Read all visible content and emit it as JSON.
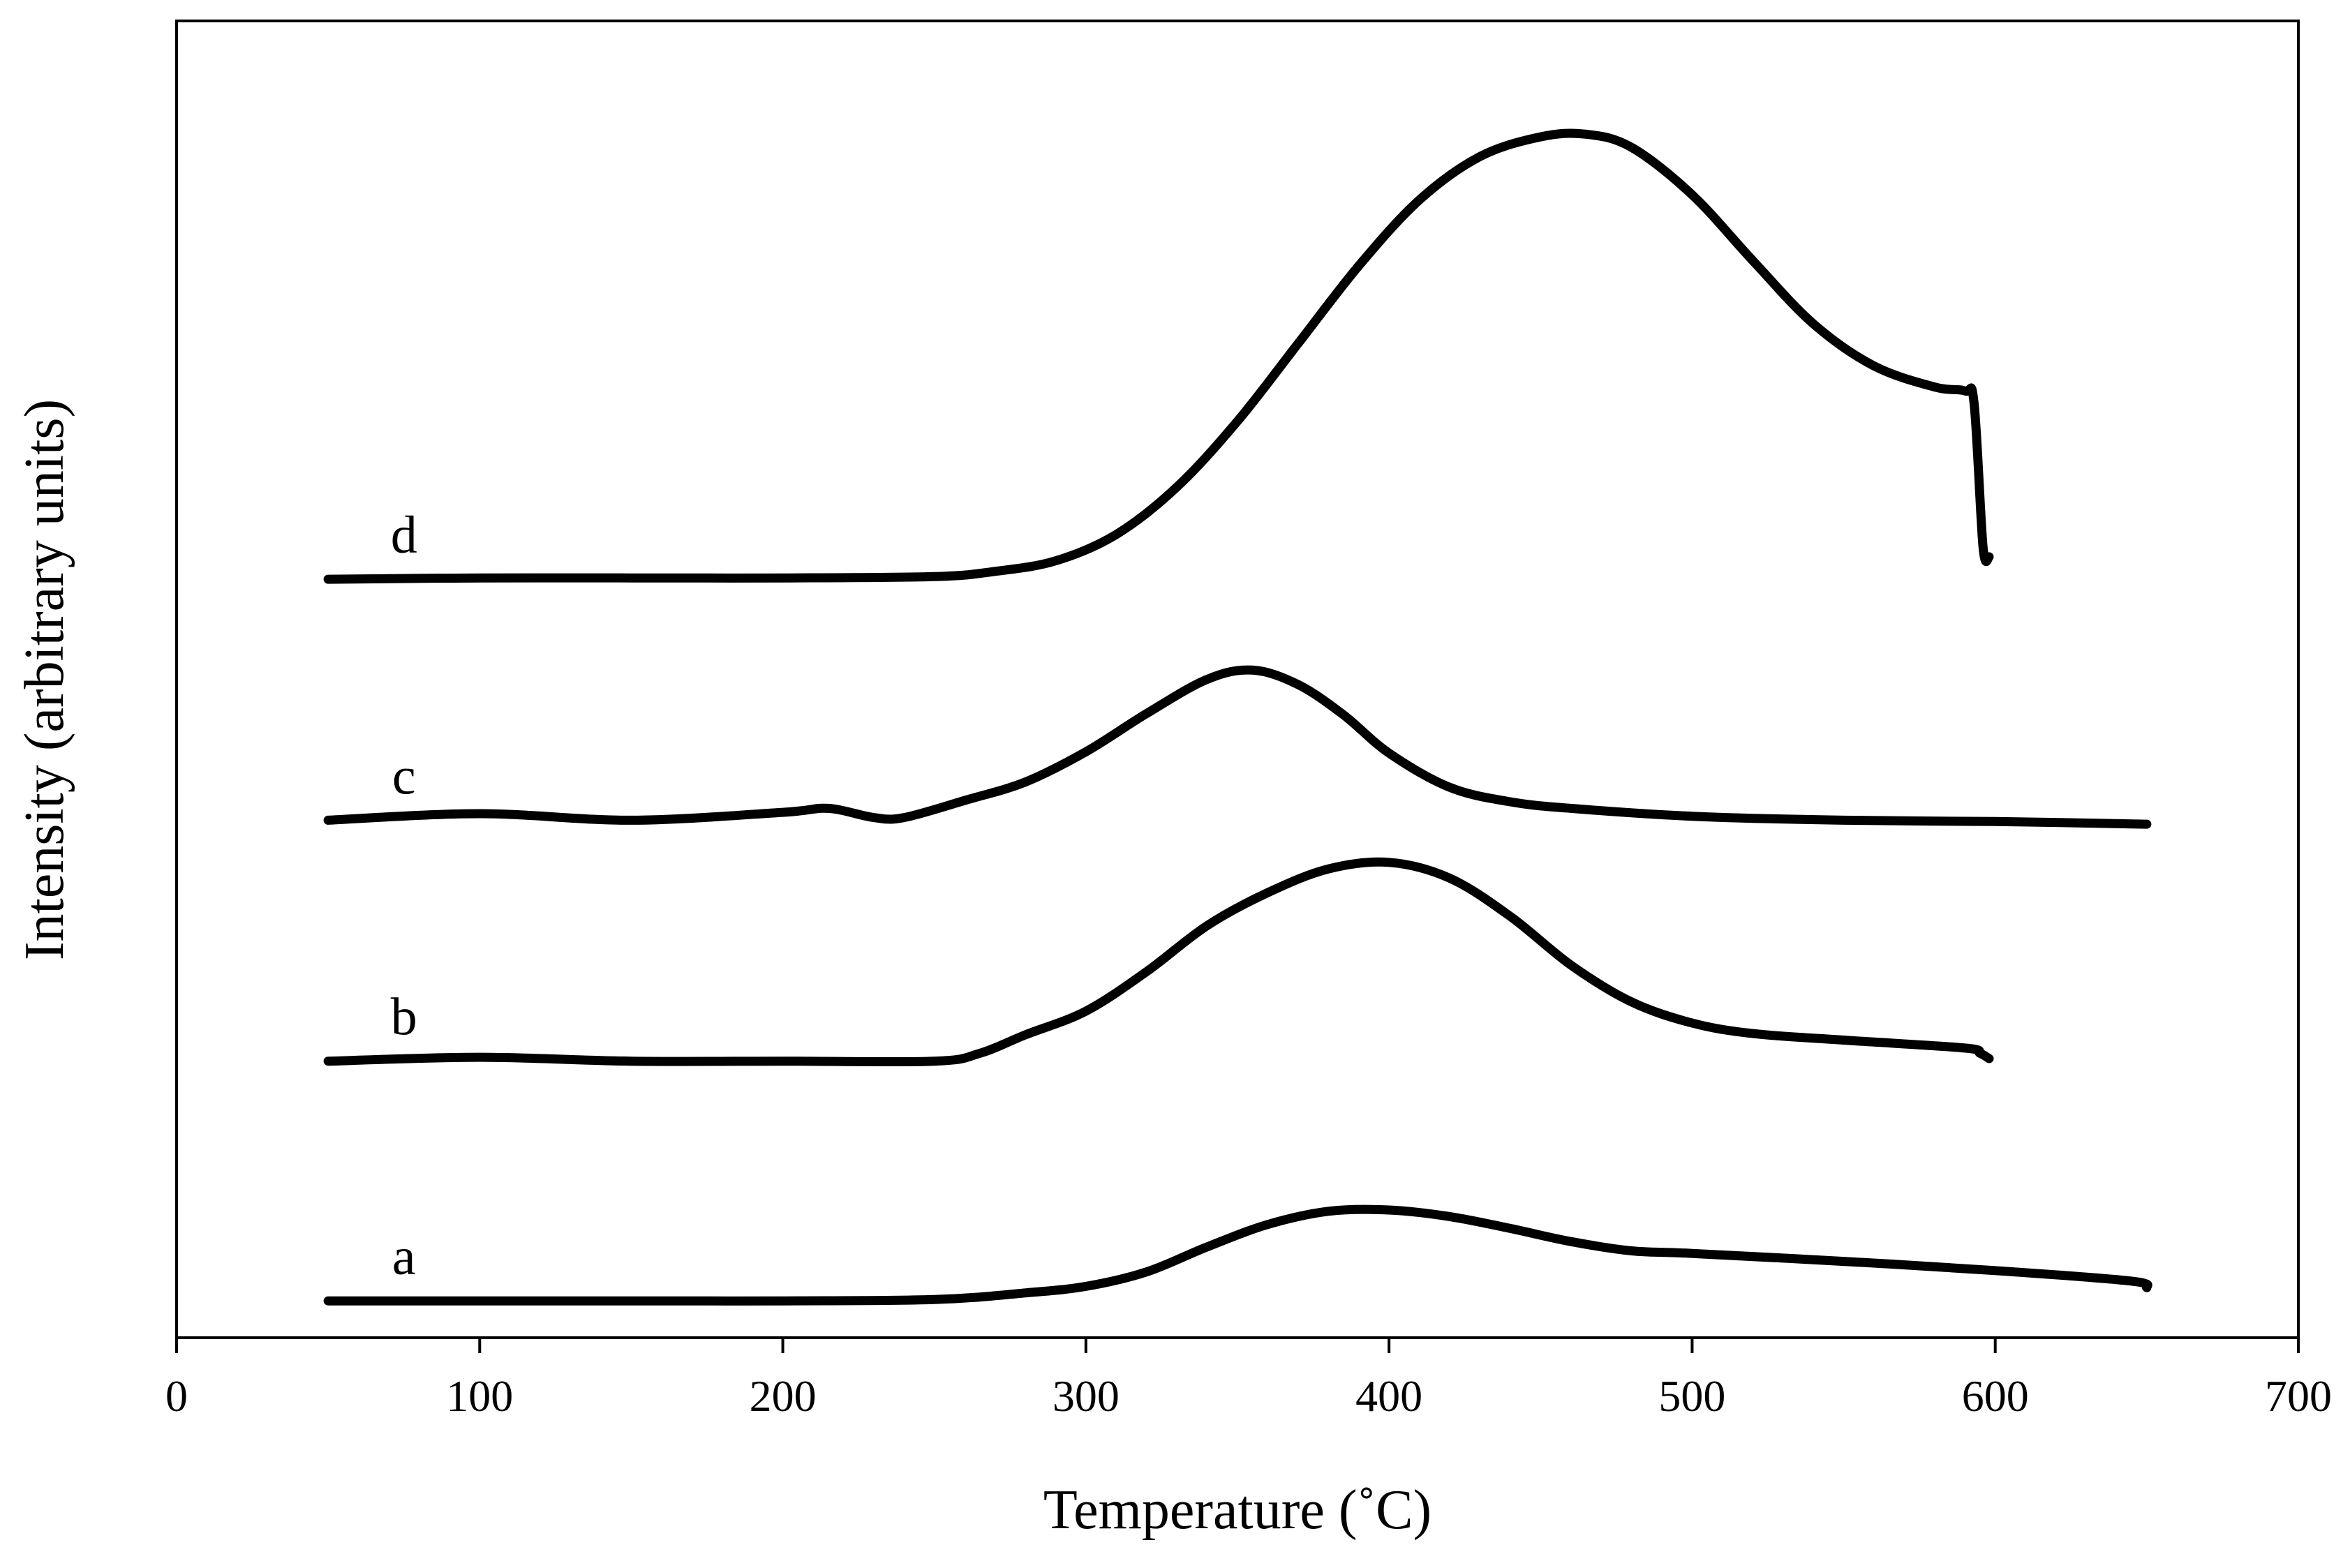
{
  "chart_data": {
    "type": "line",
    "title": "",
    "xlabel": "Temperature (˚C)",
    "ylabel": "Intensity (arbitrary units)",
    "xlim": [
      0,
      700
    ],
    "ylim": [
      0,
      100
    ],
    "xticks": [
      0,
      100,
      200,
      300,
      400,
      500,
      600,
      700
    ],
    "xtick_labels": [
      "0",
      "100",
      "200",
      "300",
      "400",
      "500",
      "600",
      "700"
    ],
    "yticks": [],
    "grid": false,
    "legend": "none",
    "line_color": "#000000",
    "series": [
      {
        "label": "a",
        "x": [
          50,
          100,
          150,
          200,
          250,
          280,
          300,
          320,
          340,
          360,
          380,
          400,
          420,
          440,
          460,
          480,
          500,
          550,
          600,
          645,
          650
        ],
        "y": [
          2.8,
          2.8,
          2.8,
          2.8,
          2.9,
          3.4,
          3.9,
          5.0,
          6.9,
          8.6,
          9.6,
          9.7,
          9.2,
          8.3,
          7.3,
          6.6,
          6.4,
          5.8,
          5.1,
          4.3,
          3.8
        ]
      },
      {
        "label": "b",
        "x": [
          50,
          100,
          150,
          200,
          250,
          265,
          280,
          300,
          320,
          340,
          360,
          380,
          400,
          420,
          440,
          460,
          480,
          500,
          520,
          550,
          590,
          595,
          598
        ],
        "y": [
          21.0,
          21.3,
          21.0,
          21.0,
          21.0,
          21.6,
          23.0,
          24.8,
          27.8,
          31.3,
          33.8,
          35.6,
          36.1,
          34.9,
          32.0,
          28.3,
          25.5,
          23.9,
          23.1,
          22.6,
          22.0,
          21.6,
          21.2
        ]
      },
      {
        "label": "c",
        "x": [
          50,
          100,
          150,
          200,
          215,
          230,
          240,
          260,
          280,
          300,
          320,
          340,
          355,
          370,
          385,
          400,
          420,
          440,
          460,
          500,
          550,
          600,
          650
        ],
        "y": [
          39.3,
          39.8,
          39.3,
          39.9,
          40.2,
          39.5,
          39.5,
          40.8,
          42.2,
          44.5,
          47.4,
          50.0,
          50.7,
          49.6,
          47.3,
          44.4,
          41.8,
          40.7,
          40.2,
          39.6,
          39.3,
          39.2,
          39.0
        ]
      },
      {
        "label": "d",
        "x": [
          50,
          100,
          150,
          200,
          250,
          270,
          290,
          310,
          330,
          350,
          370,
          390,
          410,
          430,
          450,
          465,
          480,
          500,
          520,
          540,
          560,
          580,
          590,
          593,
          596,
          598
        ],
        "y": [
          57.6,
          57.7,
          57.7,
          57.7,
          57.8,
          58.2,
          59.0,
          61.0,
          64.6,
          69.6,
          75.5,
          81.4,
          86.4,
          89.7,
          91.2,
          91.4,
          90.4,
          86.8,
          81.8,
          77.0,
          73.8,
          72.2,
          71.9,
          71.0,
          60.0,
          59.3
        ]
      }
    ]
  }
}
